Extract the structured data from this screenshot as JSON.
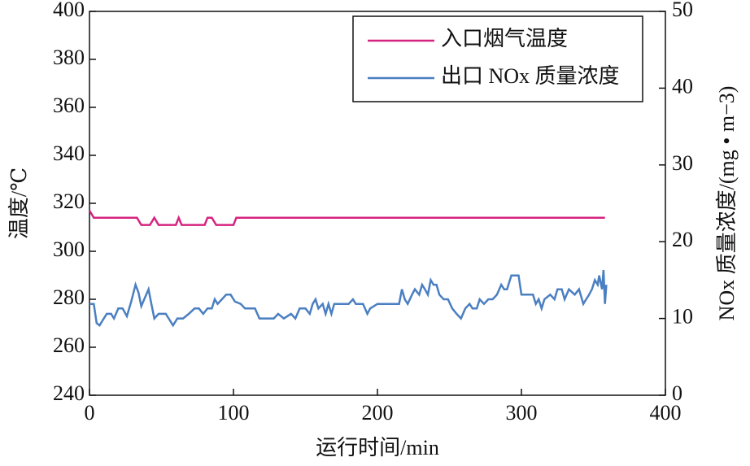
{
  "chart_data": {
    "type": "line",
    "xlabel": "运行时间/min",
    "ylabel": "温度/℃",
    "y2label": "NOx 质量浓度/(mg • m−3)",
    "xlim": [
      0,
      400
    ],
    "xticks": [
      0,
      100,
      200,
      300,
      400
    ],
    "ylim": [
      240,
      400
    ],
    "yticks": [
      240,
      260,
      280,
      300,
      320,
      340,
      360,
      380,
      400
    ],
    "y2lim": [
      0,
      50
    ],
    "y2ticks": [
      0,
      10,
      20,
      30,
      40,
      50
    ],
    "legend": "upper right",
    "series": [
      {
        "name": "入口烟气温度",
        "color": "#d6237f",
        "x": [
          0,
          3,
          33,
          36,
          42,
          45,
          48,
          60,
          62,
          64,
          80,
          82,
          85,
          88,
          100,
          102,
          358
        ],
        "values": [
          317,
          314,
          314,
          311,
          311,
          314,
          311,
          311,
          314,
          311,
          311,
          314,
          314,
          311,
          311,
          314,
          314
        ]
      },
      {
        "name": "出口 NOx 质量浓度",
        "color": "#4a7fc1",
        "axis": "y2",
        "x": [
          0,
          3,
          5,
          7,
          9,
          12,
          15,
          17,
          20,
          23,
          26,
          29,
          32,
          34,
          36,
          38,
          41,
          43,
          45,
          48,
          53,
          56,
          58,
          61,
          65,
          69,
          73,
          76,
          79,
          82,
          85,
          87,
          89,
          92,
          95,
          98,
          101,
          105,
          108,
          115,
          118,
          128,
          131,
          135,
          140,
          143,
          146,
          150,
          153,
          155,
          157,
          159,
          162,
          164,
          166,
          168,
          170,
          180,
          183,
          185,
          190,
          193,
          195,
          200,
          215,
          217,
          219,
          221,
          224,
          226,
          229,
          231,
          233,
          235,
          237,
          239,
          241,
          243,
          246,
          249,
          252,
          255,
          258,
          261,
          264,
          266,
          269,
          271,
          274,
          277,
          280,
          283,
          286,
          288,
          290,
          293,
          298,
          300,
          305,
          308,
          310,
          312,
          314,
          316,
          320,
          323,
          325,
          328,
          330,
          333,
          337,
          340,
          343,
          345,
          347,
          349,
          351,
          353,
          354,
          356,
          357,
          358,
          359
        ],
        "values": [
          11.9,
          11.9,
          9.4,
          9.1,
          9.7,
          10.6,
          10.6,
          10.0,
          11.3,
          11.3,
          10.3,
          12.2,
          14.4,
          13.4,
          11.6,
          12.5,
          13.8,
          11.9,
          10.0,
          10.6,
          10.6,
          9.7,
          9.1,
          10.0,
          10.0,
          10.6,
          11.3,
          11.3,
          10.6,
          11.3,
          11.3,
          12.5,
          11.9,
          12.5,
          13.1,
          13.1,
          12.2,
          11.9,
          11.3,
          11.3,
          10.0,
          10.0,
          10.6,
          10.0,
          10.6,
          10.0,
          11.3,
          11.3,
          10.6,
          11.9,
          12.5,
          11.3,
          11.9,
          10.6,
          11.9,
          10.6,
          11.9,
          11.9,
          12.5,
          11.9,
          11.9,
          10.6,
          11.3,
          11.9,
          11.9,
          13.8,
          12.5,
          11.9,
          13.1,
          13.8,
          13.1,
          14.4,
          13.8,
          13.1,
          15.0,
          14.4,
          14.4,
          13.1,
          12.5,
          12.5,
          11.3,
          10.6,
          10.0,
          11.3,
          11.9,
          11.3,
          11.3,
          12.5,
          11.9,
          12.5,
          12.5,
          13.1,
          14.4,
          13.8,
          13.8,
          15.6,
          15.6,
          13.1,
          13.1,
          13.1,
          11.9,
          12.5,
          11.3,
          12.5,
          13.1,
          12.5,
          13.8,
          13.8,
          12.5,
          13.8,
          13.1,
          13.8,
          11.9,
          12.5,
          13.1,
          13.8,
          15.0,
          14.4,
          15.6,
          13.8,
          16.3,
          11.9,
          14.4
        ]
      }
    ]
  }
}
